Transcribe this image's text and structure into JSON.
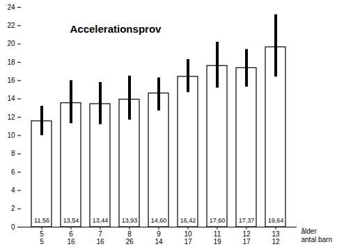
{
  "chart_data": {
    "type": "bar",
    "title": "Accelerationsprov",
    "categories": [
      "5",
      "6",
      "7",
      "8",
      "9",
      "10",
      "11",
      "12",
      "13"
    ],
    "values": [
      11.56,
      13.54,
      13.44,
      13.93,
      14.6,
      16.42,
      17.6,
      17.37,
      19.64
    ],
    "value_labels": [
      "11,56",
      "13,54",
      "13,44",
      "13,93",
      "14,60",
      "16,42",
      "17,60",
      "17,37",
      "19,64"
    ],
    "data_labels": true,
    "error_low": [
      10.0,
      11.3,
      11.2,
      11.7,
      12.7,
      14.7,
      15.2,
      15.3,
      16.4
    ],
    "error_high": [
      13.2,
      16.0,
      15.8,
      16.5,
      16.3,
      18.3,
      20.2,
      19.4,
      23.2
    ],
    "xlabel": "ålder",
    "counts": {
      "name": "antal barn",
      "values": [
        5,
        16,
        16,
        26,
        14,
        17,
        19,
        17,
        12
      ]
    },
    "color": "#ffffff",
    "ylim": [
      0,
      24
    ],
    "yticks": [
      0,
      2,
      4,
      6,
      8,
      10,
      12,
      14,
      16,
      18,
      20,
      22,
      24
    ],
    "grid": false
  }
}
